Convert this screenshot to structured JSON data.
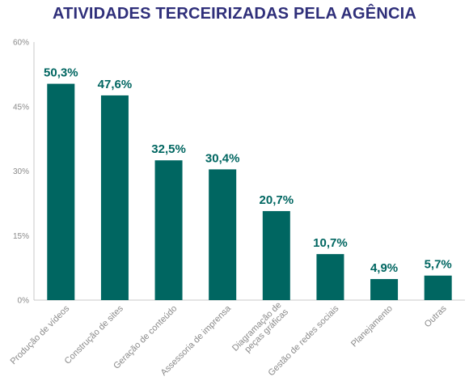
{
  "chart_data": {
    "type": "bar",
    "title": "ATIVIDADES TERCEIRIZADAS PELA AGÊNCIA",
    "xlabel": "",
    "ylabel": "",
    "ylim": [
      0,
      60
    ],
    "yticks": [
      0,
      15,
      30,
      45,
      60
    ],
    "ytick_labels": [
      "0%",
      "15%",
      "30%",
      "45%",
      "60%"
    ],
    "grid": false,
    "categories": [
      [
        "Produção de vídeos"
      ],
      [
        "Construção de sites"
      ],
      [
        "Geração de conteúdo"
      ],
      [
        "Assessoria de imprensa"
      ],
      [
        "Diagramação de",
        "peças gráficas"
      ],
      [
        "Gestão de redes sociais"
      ],
      [
        "Planejamento"
      ],
      [
        "Outras"
      ]
    ],
    "values": [
      50.3,
      47.6,
      32.5,
      30.4,
      20.7,
      10.7,
      4.9,
      5.7
    ],
    "value_labels": [
      "50,3%",
      "47,6%",
      "32,5%",
      "30,4%",
      "20,7%",
      "10,7%",
      "4,9%",
      "5,7%"
    ]
  },
  "colors": {
    "title": "#2f2f7a",
    "bar": "#006661",
    "value_label": "#006661",
    "axis": "#c8c8c8",
    "tick_text": "#8a8a8a"
  }
}
